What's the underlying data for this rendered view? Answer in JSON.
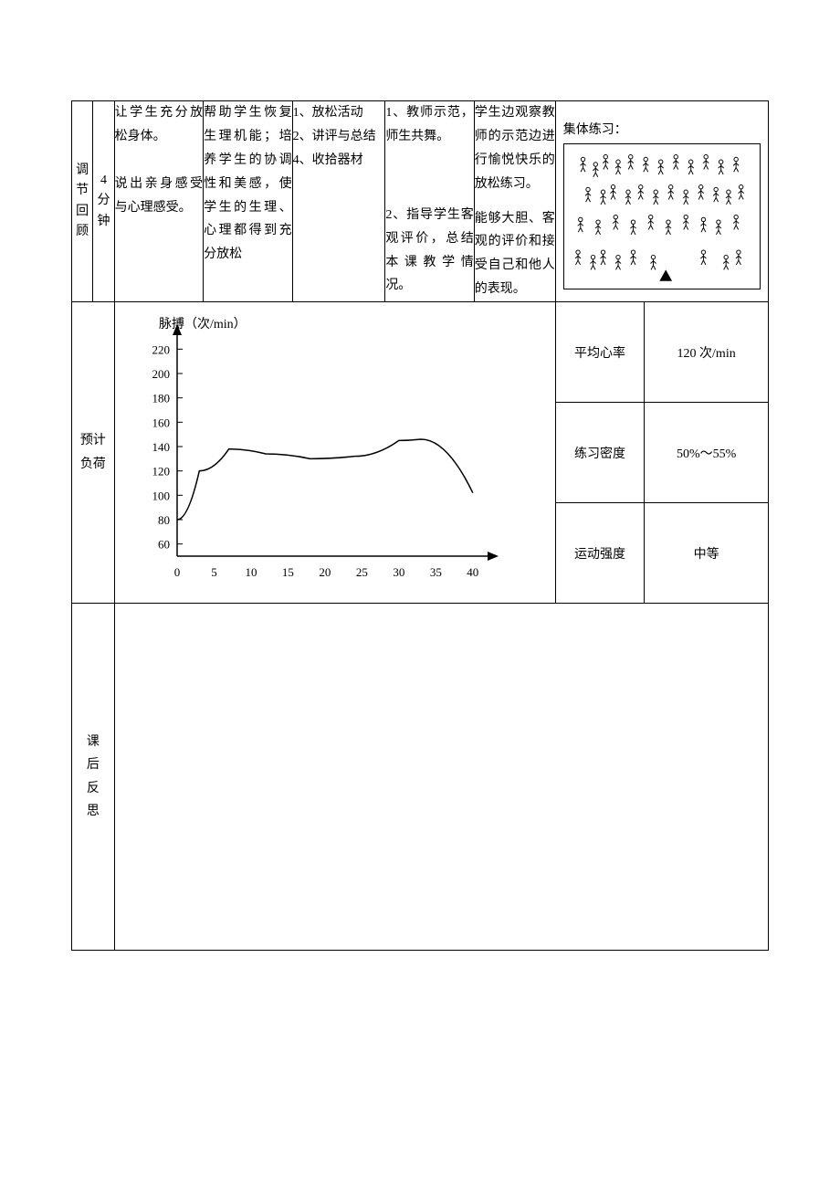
{
  "row1": {
    "section_label": "调节回顾",
    "time_label": "4分钟",
    "c1": "让学生充分放松身体。\n\n说出亲身感受与心理感受。",
    "c2": "帮助学生恢复生理机能；培养学生的协调性和美感，使学生的生理、心理都得到充分放松",
    "c3_1": "1、放松活动",
    "c3_2": "2、讲评与总结",
    "c3_3": "4、收拾器材",
    "c4_1": "1、教师示范，师生共舞。",
    "c4_2": "2、指导学生客观评价，总结本课教学情况。",
    "c5_1": "学生边观察教师的示范边进行愉悦快乐的放松练习。",
    "c5_2": "能够大胆、客观的评价和接受自己和他人的表现。",
    "c6_label": "集体练习："
  },
  "load": {
    "row_label": "预计负荷",
    "chart": {
      "y_label": "脉搏（次/min）",
      "y_ticks": [
        60,
        80,
        100,
        120,
        140,
        160,
        180,
        200,
        220
      ],
      "x_ticks": [
        0,
        5,
        10,
        15,
        20,
        25,
        30,
        35,
        40
      ],
      "line_points": [
        {
          "x": 0,
          "y": 80
        },
        {
          "x": 3,
          "y": 120
        },
        {
          "x": 7,
          "y": 138
        },
        {
          "x": 12,
          "y": 134
        },
        {
          "x": 18,
          "y": 130
        },
        {
          "x": 24,
          "y": 132
        },
        {
          "x": 30,
          "y": 145
        },
        {
          "x": 33,
          "y": 146
        },
        {
          "x": 40,
          "y": 102
        }
      ],
      "axis_color": "#000000",
      "line_color": "#000000",
      "line_width": 1.5,
      "xlim": [
        0,
        42
      ],
      "ylim": [
        50,
        230
      ]
    },
    "metrics": [
      {
        "label": "平均心率",
        "value": "120 次/min"
      },
      {
        "label": "练习密度",
        "value": "50%～55%"
      },
      {
        "label": "运动强度",
        "value": "中等"
      }
    ]
  },
  "reflect_label": "课后反思",
  "stick_formation": {
    "people": [
      {
        "x": 12,
        "y": 12
      },
      {
        "x": 22,
        "y": 16
      },
      {
        "x": 30,
        "y": 10
      },
      {
        "x": 40,
        "y": 14
      },
      {
        "x": 50,
        "y": 10
      },
      {
        "x": 62,
        "y": 12
      },
      {
        "x": 74,
        "y": 14
      },
      {
        "x": 86,
        "y": 10
      },
      {
        "x": 98,
        "y": 14
      },
      {
        "x": 110,
        "y": 10
      },
      {
        "x": 122,
        "y": 14
      },
      {
        "x": 134,
        "y": 12
      },
      {
        "x": 16,
        "y": 36
      },
      {
        "x": 28,
        "y": 38
      },
      {
        "x": 36,
        "y": 34
      },
      {
        "x": 48,
        "y": 38
      },
      {
        "x": 58,
        "y": 34
      },
      {
        "x": 70,
        "y": 38
      },
      {
        "x": 82,
        "y": 34
      },
      {
        "x": 94,
        "y": 38
      },
      {
        "x": 106,
        "y": 34
      },
      {
        "x": 118,
        "y": 36
      },
      {
        "x": 128,
        "y": 38
      },
      {
        "x": 138,
        "y": 34
      },
      {
        "x": 10,
        "y": 60
      },
      {
        "x": 24,
        "y": 62
      },
      {
        "x": 38,
        "y": 58
      },
      {
        "x": 52,
        "y": 62
      },
      {
        "x": 66,
        "y": 58
      },
      {
        "x": 80,
        "y": 62
      },
      {
        "x": 94,
        "y": 58
      },
      {
        "x": 108,
        "y": 60
      },
      {
        "x": 120,
        "y": 62
      },
      {
        "x": 134,
        "y": 58
      },
      {
        "x": 8,
        "y": 86
      },
      {
        "x": 20,
        "y": 90
      },
      {
        "x": 28,
        "y": 86
      },
      {
        "x": 40,
        "y": 90
      },
      {
        "x": 52,
        "y": 86
      },
      {
        "x": 68,
        "y": 90
      },
      {
        "x": 108,
        "y": 86
      },
      {
        "x": 126,
        "y": 90
      },
      {
        "x": 136,
        "y": 86
      }
    ],
    "triangle": {
      "x": 78,
      "y": 100
    },
    "stroke": "#000000"
  }
}
